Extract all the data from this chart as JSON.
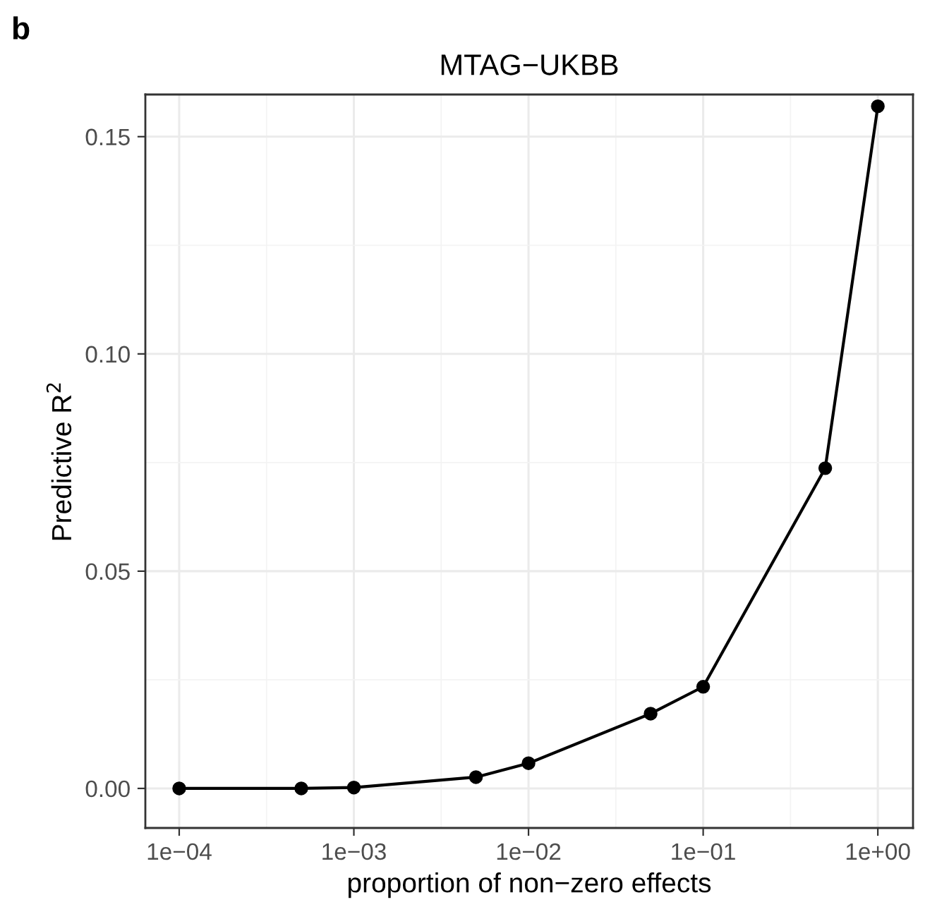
{
  "chart_data": {
    "type": "line",
    "title": "MTAG−UKBB",
    "xlabel": "proportion of non−zero effects",
    "ylabel": "Predictive R$^{2}$",
    "annotations": [
      "b"
    ],
    "x": [
      0.0001,
      0.0005,
      0.001,
      0.005,
      0.01,
      0.05,
      0.1,
      0.5,
      1
    ],
    "series": [
      {
        "color": "#000000",
        "values": [
          0,
          0,
          0.0002,
          0.0026,
          0.0058,
          0.0172,
          0.0234,
          0.0737,
          0.157
        ]
      }
    ],
    "log": "x",
    "xlim": [
      6.4e-05,
      1.59
    ],
    "ylim": [
      -0.0091,
      0.1597
    ],
    "xticks": [
      {
        "value": 0.0001,
        "label": "1e−04"
      },
      {
        "value": 0.001,
        "label": "1e−03"
      },
      {
        "value": 0.01,
        "label": "1e−02"
      },
      {
        "value": 0.1,
        "label": "1e−01"
      },
      {
        "value": 1,
        "label": "1e+00"
      }
    ],
    "yticks": [
      {
        "value": 0,
        "label": "0.00"
      },
      {
        "value": 0.05,
        "label": "0.05"
      },
      {
        "value": 0.1,
        "label": "0.10"
      },
      {
        "value": 0.15,
        "label": "0.15"
      }
    ],
    "grid": true,
    "marker": "circle",
    "line_style": "solid"
  }
}
